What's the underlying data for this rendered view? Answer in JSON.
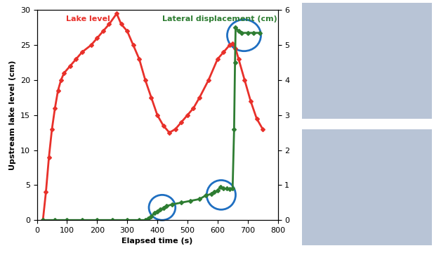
{
  "chart_data": {
    "type": "line",
    "x_label": "Elapsed time (s)",
    "y_label": "Upstream lake level (cm)",
    "xlim": [
      0,
      800
    ],
    "xticks": [
      0,
      100,
      200,
      300,
      400,
      500,
      600,
      700,
      800
    ],
    "ylim": [
      0,
      30
    ],
    "yticks": [
      0,
      5,
      10,
      15,
      20,
      25,
      30
    ],
    "y2lim": [
      0,
      6
    ],
    "y2ticks": [
      0,
      1,
      2,
      3,
      4,
      5,
      6
    ],
    "grid": false,
    "series": [
      {
        "name": "Lake level",
        "color": "#e8302a",
        "marker": "D",
        "line_style": "solid",
        "x": [
          20,
          30,
          40,
          50,
          60,
          70,
          80,
          90,
          110,
          130,
          150,
          180,
          200,
          220,
          240,
          265,
          280,
          300,
          320,
          340,
          360,
          380,
          400,
          420,
          440,
          460,
          480,
          500,
          520,
          540,
          570,
          600,
          620,
          640,
          650,
          660,
          670,
          690,
          710,
          730,
          750
        ],
        "values": [
          0,
          4,
          9,
          13,
          16,
          18.5,
          20,
          21,
          22,
          23,
          24,
          25,
          26,
          27,
          28,
          29.5,
          28,
          27,
          25,
          23,
          20,
          17.5,
          15,
          13.5,
          12.5,
          13,
          14,
          15,
          16,
          17.5,
          20,
          23,
          24,
          25,
          25.2,
          24.5,
          23,
          20,
          17,
          14.5,
          13
        ],
        "axis": "y"
      },
      {
        "name": "Lateral displacement (cm)",
        "color": "#2e7d32",
        "marker": "D",
        "line_style": "solid",
        "x": [
          20,
          60,
          100,
          150,
          200,
          250,
          300,
          340,
          360,
          370,
          380,
          390,
          400,
          410,
          420,
          430,
          450,
          480,
          510,
          540,
          560,
          580,
          590,
          600,
          610,
          620,
          630,
          640,
          650,
          655,
          658,
          660,
          670,
          680,
          700,
          720,
          740
        ],
        "values": [
          0,
          0,
          0,
          0,
          0,
          0,
          0,
          0,
          0,
          0.05,
          0.1,
          0.2,
          0.25,
          0.3,
          0.35,
          0.4,
          0.45,
          0.5,
          0.55,
          0.6,
          0.7,
          0.75,
          0.8,
          0.85,
          0.95,
          0.9,
          0.9,
          0.88,
          0.9,
          2.6,
          4.5,
          5.5,
          5.4,
          5.35,
          5.35,
          5.35,
          5.35
        ],
        "axis": "y2"
      }
    ]
  }
}
